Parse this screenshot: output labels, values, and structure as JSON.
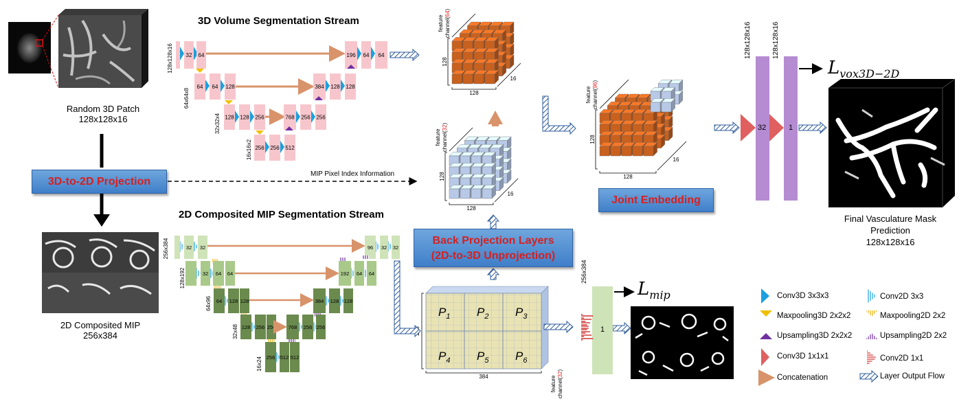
{
  "streams": {
    "volume_title": "3D Volume Segmentation Stream",
    "mip_title": "2D Composited MIP Segmentation Stream"
  },
  "patch": {
    "caption_line1": "Random 3D Patch",
    "caption_line2": "128x128x16"
  },
  "mip": {
    "caption_line1": "2D Composited MIP",
    "caption_line2": "256x384"
  },
  "projection_box": "3D-to-2D Projection",
  "mip_pixel_info": "MIP Pixel Index Information",
  "back_projection": {
    "line1": "Back Projection Layers",
    "line2": "(2D-to-3D Unprojection)"
  },
  "joint_embedding": "Joint Embedding",
  "final": {
    "line1": "Final Vasculature Mask",
    "line2": "Prediction",
    "line3": "128x128x16",
    "loss_main": "L",
    "loss_sub": "vox3D−2D"
  },
  "mip_loss": {
    "main": "L",
    "sub": "mip"
  },
  "unet3d": {
    "level_sizes": [
      "128x128x16",
      "64x64x8",
      "32x32x4",
      "16x16x2"
    ],
    "level1": [
      "32",
      "64",
      "196",
      "64",
      "64"
    ],
    "level2": [
      "64",
      "64",
      "128",
      "384",
      "128",
      "128"
    ],
    "level3": [
      "128",
      "128",
      "256",
      "768",
      "256",
      "256"
    ],
    "level4": [
      "256",
      "256",
      "512"
    ]
  },
  "unet2d": {
    "level_sizes": [
      "256x384",
      "128x192",
      "64x96",
      "32x48",
      "16x24"
    ],
    "level1": [
      "32",
      "32",
      "96",
      "32",
      "32"
    ],
    "level2": [
      "32",
      "64",
      "64",
      "192",
      "64",
      "64"
    ],
    "level3": [
      "64",
      "128",
      "128",
      "384",
      "128",
      "128"
    ],
    "level4": [
      "128",
      "256",
      "256",
      "768",
      "256",
      "256"
    ],
    "level5": [
      "256",
      "512",
      "512"
    ]
  },
  "cube64": {
    "channel_word": "feature",
    "channel_prefix": "channel(",
    "channel_num": "64",
    "channel_suffix": ")",
    "h": "128",
    "d": "16",
    "w": "128"
  },
  "cube32": {
    "channel_word": "feature",
    "channel_prefix": "channel(",
    "channel_num": "32",
    "channel_suffix": ")",
    "h": "128",
    "d": "16",
    "w": "128"
  },
  "cube96": {
    "channel_word": "feature",
    "channel_prefix": "channel(",
    "channel_num": "96",
    "channel_suffix": ")",
    "h": "128",
    "d": "16",
    "w": "128"
  },
  "mipgrid": {
    "h": "256",
    "w": "384",
    "channel_word": "feature",
    "channel_prefix": "channel(",
    "channel_num": "32",
    "channel_suffix": ")",
    "cells": [
      "1",
      "2",
      "3",
      "4",
      "5",
      "6"
    ],
    "p": "P"
  },
  "final_layers": {
    "size1": "128x128x16",
    "size2": "128x128x16",
    "ch1": "32",
    "ch2": "1"
  },
  "mip_out": {
    "size": "256x384",
    "ch": "1"
  },
  "legend": {
    "conv3d": "Conv3D 3x3x3",
    "conv2d": "Conv2D 3x3",
    "maxpool3d": "Maxpooling3D  2x2x2",
    "maxpool2d": "Maxpooling2D  2x2",
    "upsample3d": "Upsampling3D 2x2x2",
    "upsample2d": "Upsampling2D 2x2",
    "conv3d1": "Conv3D 1x1x1",
    "conv2d1": "Conv2D 1x1",
    "concat": "Concatenation",
    "flow": "Layer Output Flow"
  },
  "colors": {
    "pink": "#f7c6cc",
    "green_light": "#cfe3b8",
    "green_mid": "#a9c98a",
    "green_dark": "#6b8a4e",
    "orange_cube": "#c8601e",
    "blue_cube": "#b8c9e8",
    "purple": "#b58cd2",
    "concat_arrow": "#d8936a",
    "conv_blue": "#1aa0e0",
    "pool_yellow": "#f0c000",
    "up_purple": "#7030a0",
    "red_tri": "#e06060"
  }
}
